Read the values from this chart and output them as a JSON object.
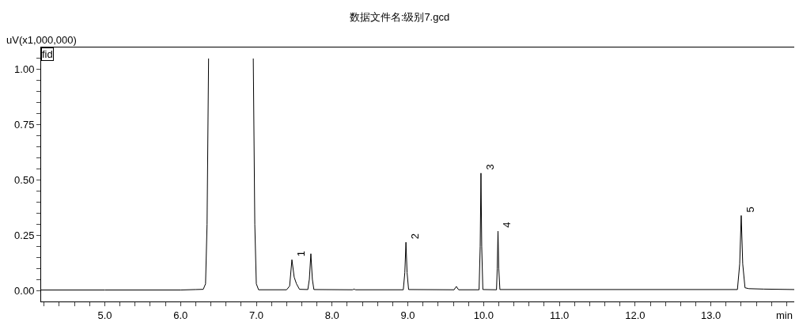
{
  "chart_data": {
    "type": "line",
    "title": "数据文件名:级别7.gcd",
    "xlabel": "min",
    "ylabel": "uV(x1,000,000)",
    "annotations": [
      "fid",
      {
        "text": "1",
        "x": 7.47,
        "y": 0.139
      },
      {
        "text": "2",
        "x": 8.975,
        "y": 0.218
      },
      {
        "text": "3",
        "x": 9.965,
        "y": 0.531
      },
      {
        "text": "4",
        "x": 10.19,
        "y": 0.268
      },
      {
        "text": "5",
        "x": 13.4,
        "y": 0.339
      }
    ],
    "x": [
      4.16,
      5.0,
      6.0,
      6.2,
      6.3,
      6.33,
      6.35,
      6.37,
      6.6,
      6.96,
      6.98,
      7.0,
      7.03,
      7.4,
      7.44,
      7.47,
      7.5,
      7.53,
      7.57,
      7.68,
      7.7,
      7.72,
      7.74,
      7.76,
      8.27,
      8.29,
      8.31,
      8.94,
      8.96,
      8.975,
      8.99,
      9.01,
      9.61,
      9.64,
      9.67,
      9.94,
      9.955,
      9.965,
      9.975,
      9.99,
      10.17,
      10.18,
      10.19,
      10.2,
      10.215,
      13.35,
      13.38,
      13.4,
      13.42,
      13.45,
      13.5,
      13.7,
      14.1
    ],
    "series": [
      {
        "color": "#000000",
        "values": [
          0.002,
          0.002,
          0.002,
          0.004,
          0.005,
          0.03,
          0.3,
          1.05,
          null,
          1.05,
          0.3,
          0.03,
          0.003,
          0.003,
          0.02,
          0.139,
          0.06,
          0.03,
          0.005,
          0.004,
          0.05,
          0.166,
          0.05,
          0.004,
          0.003,
          0.006,
          0.003,
          0.003,
          0.08,
          0.218,
          0.08,
          0.004,
          0.003,
          0.018,
          0.003,
          0.003,
          0.2,
          0.531,
          0.2,
          0.004,
          0.003,
          0.1,
          0.268,
          0.1,
          0.004,
          0.004,
          0.12,
          0.339,
          0.12,
          0.012,
          0.008,
          0.006,
          0.004
        ]
      }
    ],
    "xlim": [
      4.16,
      14.1
    ],
    "ylim": [
      -0.05,
      1.1
    ],
    "xticks": [
      {
        "value": 4.2,
        "label": null
      },
      {
        "value": 4.4,
        "label": null
      },
      {
        "value": 4.6,
        "label": null
      },
      {
        "value": 4.8,
        "label": null
      },
      {
        "value": 5.0,
        "label": "5.0"
      },
      {
        "value": 5.2,
        "label": null
      },
      {
        "value": 5.4,
        "label": null
      },
      {
        "value": 5.6,
        "label": null
      },
      {
        "value": 5.8,
        "label": null
      },
      {
        "value": 6.0,
        "label": "6.0"
      },
      {
        "value": 6.2,
        "label": null
      },
      {
        "value": 6.4,
        "label": null
      },
      {
        "value": 6.6,
        "label": null
      },
      {
        "value": 6.8,
        "label": null
      },
      {
        "value": 7.0,
        "label": "7.0"
      },
      {
        "value": 7.2,
        "label": null
      },
      {
        "value": 7.4,
        "label": null
      },
      {
        "value": 7.6,
        "label": null
      },
      {
        "value": 7.8,
        "label": null
      },
      {
        "value": 8.0,
        "label": "8.0"
      },
      {
        "value": 8.2,
        "label": null
      },
      {
        "value": 8.4,
        "label": null
      },
      {
        "value": 8.6,
        "label": null
      },
      {
        "value": 8.8,
        "label": null
      },
      {
        "value": 9.0,
        "label": "9.0"
      },
      {
        "value": 9.2,
        "label": null
      },
      {
        "value": 9.4,
        "label": null
      },
      {
        "value": 9.6,
        "label": null
      },
      {
        "value": 9.8,
        "label": null
      },
      {
        "value": 10.0,
        "label": "10.0"
      },
      {
        "value": 10.2,
        "label": null
      },
      {
        "value": 10.4,
        "label": null
      },
      {
        "value": 10.6,
        "label": null
      },
      {
        "value": 10.8,
        "label": null
      },
      {
        "value": 11.0,
        "label": "11.0"
      },
      {
        "value": 11.2,
        "label": null
      },
      {
        "value": 11.4,
        "label": null
      },
      {
        "value": 11.6,
        "label": null
      },
      {
        "value": 11.8,
        "label": null
      },
      {
        "value": 12.0,
        "label": "12.0"
      },
      {
        "value": 12.2,
        "label": null
      },
      {
        "value": 12.4,
        "label": null
      },
      {
        "value": 12.6,
        "label": null
      },
      {
        "value": 12.8,
        "label": null
      },
      {
        "value": 13.0,
        "label": "13.0"
      },
      {
        "value": 13.2,
        "label": null
      },
      {
        "value": 13.4,
        "label": null
      },
      {
        "value": 13.6,
        "label": null
      },
      {
        "value": 13.8,
        "label": null
      },
      {
        "value": 14.0,
        "label": null
      }
    ],
    "yticks": [
      {
        "value": 0.0,
        "label": "0.00"
      },
      {
        "value": 0.05,
        "label": null
      },
      {
        "value": 0.1,
        "label": null
      },
      {
        "value": 0.15,
        "label": null
      },
      {
        "value": 0.2,
        "label": null
      },
      {
        "value": 0.25,
        "label": "0.25"
      },
      {
        "value": 0.3,
        "label": null
      },
      {
        "value": 0.35,
        "label": null
      },
      {
        "value": 0.4,
        "label": null
      },
      {
        "value": 0.45,
        "label": null
      },
      {
        "value": 0.5,
        "label": "0.50"
      },
      {
        "value": 0.55,
        "label": null
      },
      {
        "value": 0.6,
        "label": null
      },
      {
        "value": 0.65,
        "label": null
      },
      {
        "value": 0.7,
        "label": null
      },
      {
        "value": 0.75,
        "label": "0.75"
      },
      {
        "value": 0.8,
        "label": null
      },
      {
        "value": 0.85,
        "label": null
      },
      {
        "value": 0.9,
        "label": null
      },
      {
        "value": 0.95,
        "label": null
      },
      {
        "value": 1.0,
        "label": "1.00"
      },
      {
        "value": 1.05,
        "label": null
      }
    ],
    "marker": "none",
    "line_style": "solid"
  }
}
